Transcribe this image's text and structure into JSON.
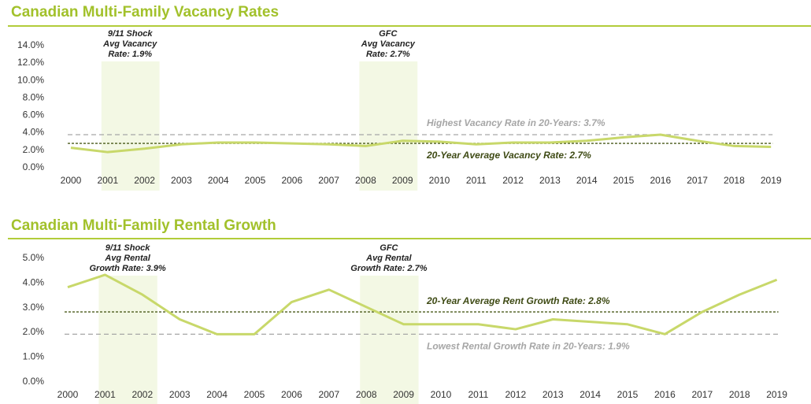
{
  "colors": {
    "title": "#a2c12b",
    "rule": "#b2cc3a",
    "line": "#c8d86a",
    "avg_line": "#4a5a1a",
    "ref_line": "#a6a6a6",
    "highlight": "#f3f8e4",
    "tick_text": "#333333",
    "ref_text": "#a6a6a6",
    "avg_text": "#3e4a14"
  },
  "chart_data": [
    {
      "type": "line",
      "title": "Canadian Multi-Family Vacancy Rates",
      "categories": [
        "2000",
        "2001",
        "2002",
        "2003",
        "2004",
        "2005",
        "2006",
        "2007",
        "2008",
        "2009",
        "2010",
        "2011",
        "2012",
        "2013",
        "2014",
        "2015",
        "2016",
        "2017",
        "2018",
        "2019"
      ],
      "values": [
        2.2,
        1.7,
        2.1,
        2.6,
        2.8,
        2.8,
        2.7,
        2.6,
        2.4,
        3.0,
        2.9,
        2.6,
        2.8,
        2.8,
        3.0,
        3.4,
        3.7,
        3.0,
        2.4,
        2.3
      ],
      "ylim": [
        0,
        14
      ],
      "yticks": [
        "0.0%",
        "2.0%",
        "4.0%",
        "6.0%",
        "8.0%",
        "10.0%",
        "12.0%",
        "14.0%"
      ],
      "reference_lines": [
        {
          "value": 3.7,
          "label": "Highest Vacancy Rate in 20-Years: 3.7%",
          "style": "ref"
        },
        {
          "value": 2.7,
          "label": "20-Year Average Vacancy Rate: 2.7%",
          "style": "avg"
        }
      ],
      "highlights": [
        {
          "from": "2001",
          "to": "2002",
          "label_lines": [
            "9/11 Shock",
            "Avg Vacancy",
            "Rate: 1.9%"
          ]
        },
        {
          "from": "2008",
          "to": "2009",
          "label_lines": [
            "GFC",
            "Avg Vacancy",
            "Rate: 2.7%"
          ]
        }
      ]
    },
    {
      "type": "line",
      "title": "Canadian Multi-Family Rental Growth",
      "categories": [
        "2000",
        "2001",
        "2002",
        "2003",
        "2004",
        "2005",
        "2006",
        "2007",
        "2008",
        "2009",
        "2010",
        "2011",
        "2012",
        "2013",
        "2014",
        "2015",
        "2016",
        "2017",
        "2018",
        "2019"
      ],
      "values": [
        3.8,
        4.3,
        3.5,
        2.5,
        1.9,
        1.9,
        3.2,
        3.7,
        3.0,
        2.3,
        2.3,
        2.3,
        2.1,
        2.5,
        2.4,
        2.3,
        1.9,
        2.8,
        3.5,
        4.1
      ],
      "ylim": [
        0,
        5
      ],
      "yticks": [
        "0.0%",
        "1.0%",
        "2.0%",
        "3.0%",
        "4.0%",
        "5.0%"
      ],
      "reference_lines": [
        {
          "value": 2.8,
          "label": "20-Year Average Rent Growth Rate: 2.8%",
          "style": "avg"
        },
        {
          "value": 1.9,
          "label": "Lowest Rental Growth Rate in 20-Years: 1.9%",
          "style": "ref"
        }
      ],
      "highlights": [
        {
          "from": "2001",
          "to": "2002",
          "label_lines": [
            "9/11 Shock",
            "Avg Rental",
            "Growth Rate: 3.9%"
          ]
        },
        {
          "from": "2008",
          "to": "2009",
          "label_lines": [
            "GFC",
            "Avg Rental",
            "Growth Rate: 2.7%"
          ]
        }
      ]
    }
  ]
}
